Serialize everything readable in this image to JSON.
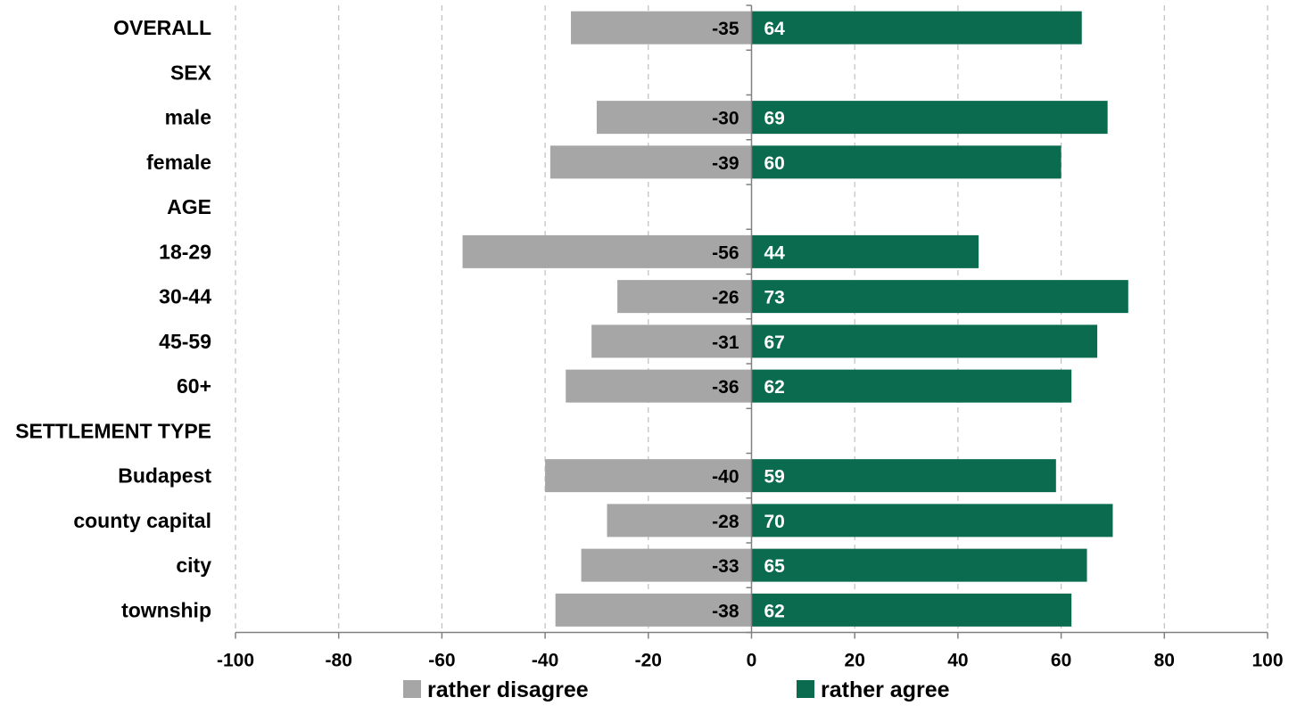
{
  "chart_data": {
    "type": "bar",
    "orientation": "horizontal",
    "categories": [
      "OVERALL",
      "SEX",
      "male",
      "female",
      "AGE",
      "18-29",
      "30-44",
      "45-59",
      "60+",
      "SETTLEMENT TYPE",
      "Budapest",
      "county capital",
      "city",
      "township"
    ],
    "series": [
      {
        "name": "rather disagree",
        "color": "#a6a6a6",
        "values": [
          -35,
          null,
          -30,
          -39,
          null,
          -56,
          -26,
          -31,
          -36,
          null,
          -40,
          -28,
          -33,
          -38
        ]
      },
      {
        "name": "rather agree",
        "color": "#0b6b4f",
        "values": [
          64,
          null,
          69,
          60,
          null,
          44,
          73,
          67,
          62,
          null,
          59,
          70,
          65,
          62
        ]
      }
    ],
    "xlim": [
      -100,
      100
    ],
    "xticks": [
      "-100",
      "-80",
      "-60",
      "-40",
      "-20",
      "0",
      "20",
      "40",
      "60",
      "80",
      "100"
    ],
    "xtick_values": [
      -100,
      -80,
      -60,
      -40,
      -20,
      0,
      20,
      40,
      60,
      80,
      100
    ],
    "grid": "vertical dashed",
    "legend_position": "bottom"
  }
}
